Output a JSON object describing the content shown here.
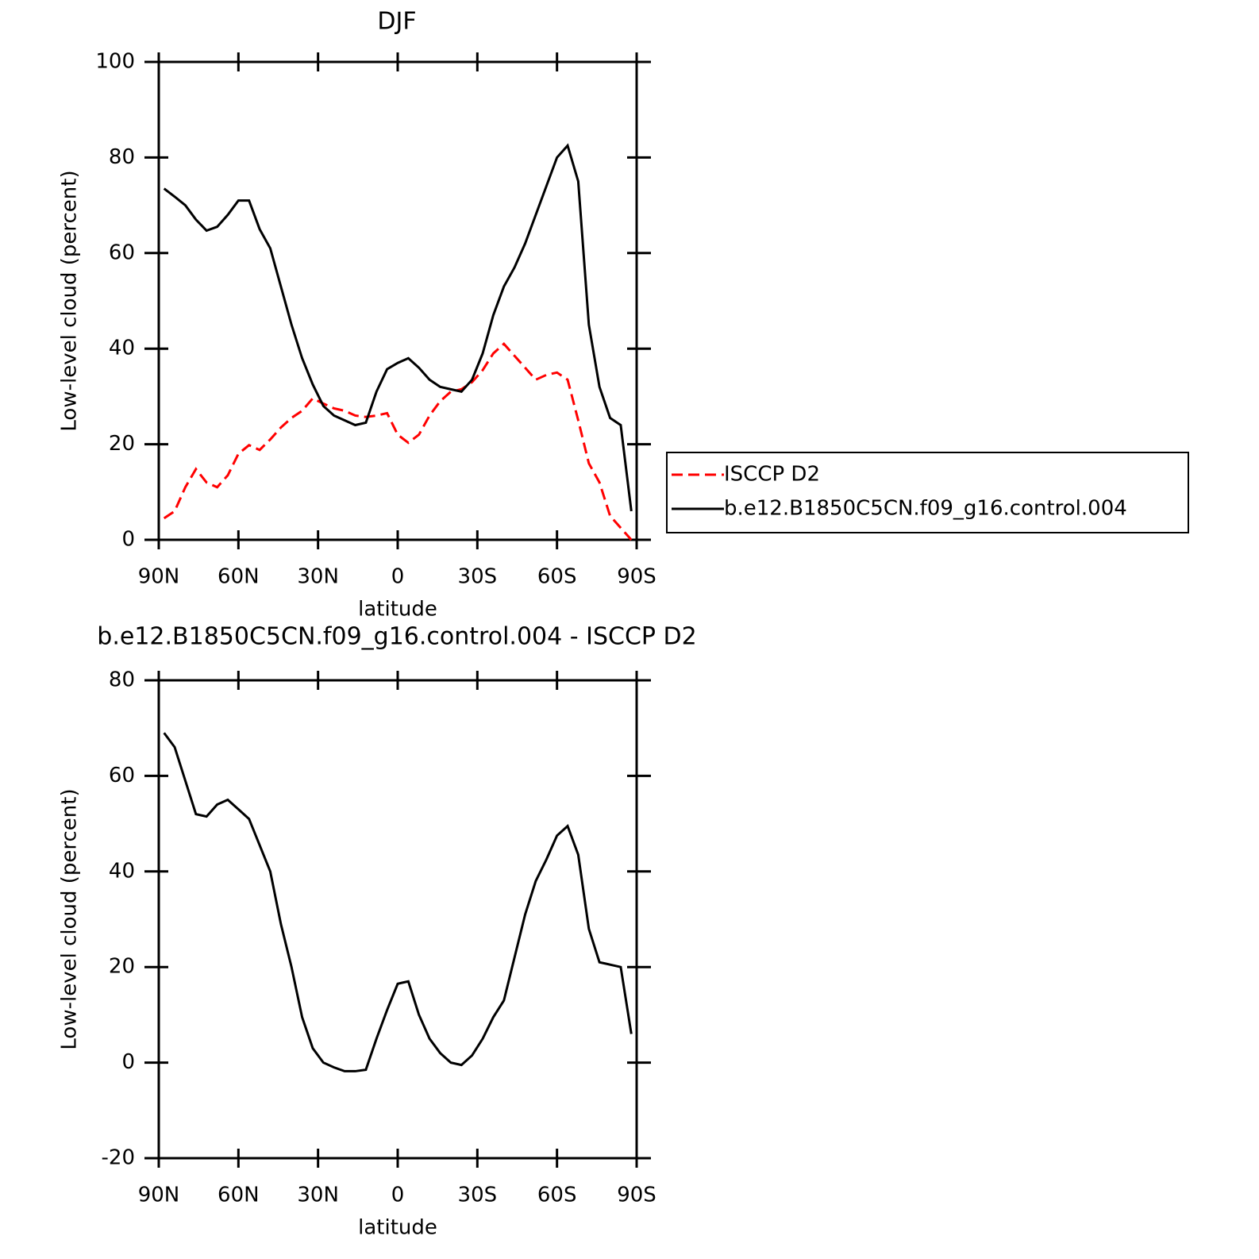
{
  "chart_data": [
    {
      "type": "line",
      "title": "DJF",
      "xlabel": "latitude",
      "ylabel": "Low-level cloud (percent)",
      "x": [
        88,
        84,
        80,
        76,
        72,
        68,
        64,
        60,
        56,
        52,
        48,
        44,
        40,
        36,
        32,
        28,
        24,
        20,
        16,
        12,
        8,
        4,
        0,
        -4,
        -8,
        -12,
        -16,
        -20,
        -24,
        -28,
        -32,
        -36,
        -40,
        -44,
        -48,
        -52,
        -56,
        -60,
        -64,
        -68,
        -72,
        -76,
        -80,
        -84,
        -88
      ],
      "series": [
        {
          "name": "ISCCP D2",
          "color": "#ff0000",
          "line_style": "dashed",
          "values": [
            4.5,
            6,
            11,
            14.8,
            12,
            11,
            13.5,
            18,
            19.8,
            18.8,
            21,
            23.5,
            25.5,
            27,
            29.6,
            28.5,
            27.5,
            27,
            26,
            25.7,
            26,
            26.5,
            22,
            20.3,
            22,
            26,
            29,
            31,
            31.5,
            33,
            35.5,
            39,
            41,
            38.5,
            36,
            33.5,
            34.5,
            35,
            33.5,
            25,
            16,
            12,
            5,
            2.5,
            0
          ]
        },
        {
          "name": "b.e12.B1850C5CN.f09_g16.control.004",
          "color": "#000000",
          "line_style": "solid",
          "values": [
            73.5,
            71.8,
            70,
            67,
            64.7,
            65.5,
            68,
            71,
            71,
            65,
            61,
            53,
            45,
            38,
            32.5,
            28,
            26,
            25,
            24,
            24.5,
            31,
            35.7,
            37,
            38,
            36,
            33.5,
            32,
            31.5,
            31,
            33.5,
            39,
            47,
            53,
            57,
            62,
            68,
            74,
            80,
            82.5,
            75,
            45,
            32,
            25.5,
            24,
            6
          ]
        }
      ],
      "xlim": [
        90,
        -90
      ],
      "xticks": [
        {
          "value": 90,
          "label": "90N"
        },
        {
          "value": 60,
          "label": "60N"
        },
        {
          "value": 30,
          "label": "30N"
        },
        0,
        {
          "value": -30,
          "label": "30S"
        },
        {
          "value": -60,
          "label": "60S"
        },
        {
          "value": -90,
          "label": "90S"
        }
      ],
      "ylim": [
        0,
        100
      ],
      "yticks": [
        0,
        20,
        40,
        60,
        80,
        100
      ],
      "legend": "right"
    },
    {
      "type": "line",
      "title": "b.e12.B1850C5CN.f09_g16.control.004 - ISCCP D2",
      "xlabel": "latitude",
      "ylabel": "Low-level cloud (percent)",
      "x": [
        88,
        84,
        80,
        76,
        72,
        68,
        64,
        60,
        56,
        52,
        48,
        44,
        40,
        36,
        32,
        28,
        24,
        20,
        16,
        12,
        8,
        4,
        0,
        -4,
        -8,
        -12,
        -16,
        -20,
        -24,
        -28,
        -32,
        -36,
        -40,
        -44,
        -48,
        -52,
        -56,
        -60,
        -64,
        -68,
        -72,
        -76,
        -80,
        -84,
        -88
      ],
      "series": [
        {
          "color": "#000000",
          "line_style": "solid",
          "values": [
            69,
            66,
            59,
            52,
            51.5,
            54,
            55,
            53,
            51,
            45.5,
            40,
            29,
            20,
            9.5,
            3,
            0,
            -1,
            -1.8,
            -1.8,
            -1.5,
            5,
            11,
            16.5,
            17,
            10,
            5,
            2,
            0,
            -0.5,
            1.5,
            5,
            9.5,
            13,
            22,
            31,
            38,
            42.5,
            47.5,
            49.5,
            43.5,
            28,
            21,
            20.5,
            20,
            6
          ]
        }
      ],
      "xlim": [
        90,
        -90
      ],
      "xticks": [
        {
          "value": 90,
          "label": "90N"
        },
        {
          "value": 60,
          "label": "60N"
        },
        {
          "value": 30,
          "label": "30N"
        },
        0,
        {
          "value": -30,
          "label": "30S"
        },
        {
          "value": -60,
          "label": "60S"
        },
        {
          "value": -90,
          "label": "90S"
        }
      ],
      "ylim": [
        -20,
        80
      ],
      "yticks": [
        -20,
        0,
        20,
        40,
        60,
        80
      ]
    }
  ]
}
